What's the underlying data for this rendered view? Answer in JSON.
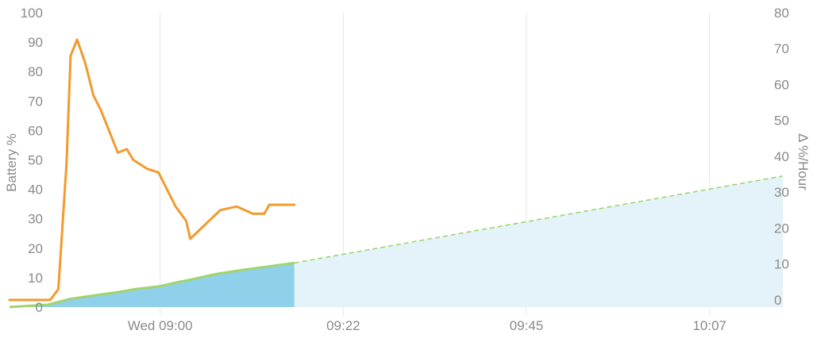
{
  "chart_data": {
    "type": "line",
    "left_axis": {
      "label": "Battery %",
      "ylim": [
        0,
        100
      ],
      "ticks": [
        0,
        10,
        20,
        30,
        40,
        50,
        60,
        70,
        80,
        90,
        100
      ]
    },
    "right_axis": {
      "label": "Δ %/Hour",
      "ylim": [
        -2,
        80
      ],
      "ticks": [
        0,
        10,
        20,
        30,
        40,
        50,
        60,
        70,
        80
      ]
    },
    "x_axis": {
      "tick_labels": [
        "Wed 09:00",
        "09:22",
        "09:45",
        "10:07"
      ],
      "tick_minutes": [
        0,
        22.5,
        45,
        67.5
      ],
      "xlim_minutes": [
        -18.5,
        76.5
      ]
    },
    "series": [
      {
        "role": "battery_percent_actual",
        "axis": "left",
        "color": "#8fd0ea",
        "line_color": "#a2d46b",
        "x_minutes": [
          -18.5,
          -13.8,
          -11,
          -8,
          -5.3,
          -3,
          0,
          1.7,
          4,
          7,
          10,
          13,
          16.5
        ],
        "y": [
          0,
          0.8,
          2.8,
          4,
          5,
          6.1,
          7.1,
          8.2,
          9.5,
          11.3,
          12.6,
          13.7,
          15
        ]
      },
      {
        "role": "battery_percent_projected",
        "axis": "left",
        "color": "#e4f3f9",
        "line_color": "#a2d46b",
        "dashed": true,
        "x_minutes": [
          16.5,
          76.5
        ],
        "y": [
          15,
          44.5
        ]
      },
      {
        "role": "charge_rate_delta_per_hour",
        "axis": "right",
        "color": "#f39a2e",
        "x_minutes": [
          -18.5,
          -13.5,
          -12.5,
          -11.5,
          -11,
          -10.2,
          -9.2,
          -8.2,
          -7.3,
          -5.2,
          -4.1,
          -3.3,
          -1.6,
          -0.2,
          1.9,
          3.2,
          3.7,
          7.4,
          9.4,
          11.4,
          12.8,
          13.4,
          15.2,
          16.5
        ],
        "y": [
          0,
          0,
          3,
          38,
          68,
          72.5,
          66,
          57,
          53,
          41,
          42,
          39,
          36.5,
          35.5,
          26,
          22,
          17,
          25,
          26,
          24,
          24,
          26.5,
          26.5,
          26.5
        ]
      }
    ]
  }
}
